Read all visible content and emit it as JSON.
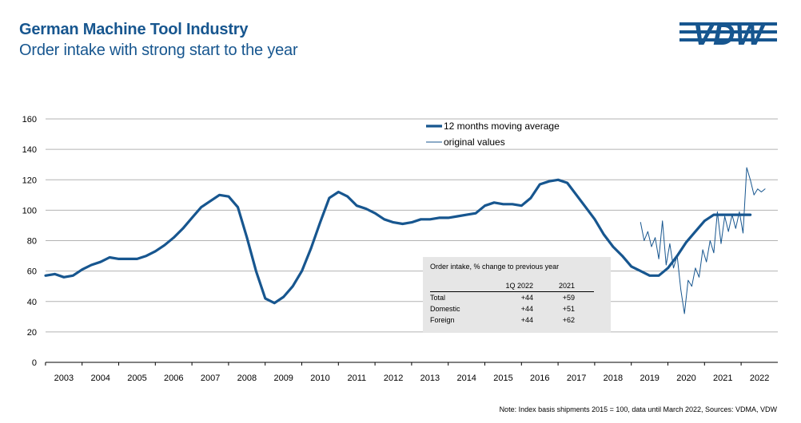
{
  "header": {
    "title": "German Machine Tool Industry",
    "subtitle": "Order intake with strong start to the year",
    "logo_text": "VDW"
  },
  "footnote": "Note: Index basis shipments 2015 = 100, data until March 2022, Sources: VDMA, VDW",
  "colors": {
    "accent": "#17568f",
    "grid": "#b3b3b3",
    "box": "#e6e6e6"
  },
  "inset_table": {
    "title": "Order intake, % change to previous year",
    "columns": [
      "1Q 2022",
      "2021"
    ],
    "rows": [
      {
        "label": "Total",
        "values": [
          "+44",
          "+59"
        ]
      },
      {
        "label": "Domestic",
        "values": [
          "+44",
          "+51"
        ]
      },
      {
        "label": "Foreign",
        "values": [
          "+44",
          "+62"
        ]
      }
    ]
  },
  "chart_data": {
    "type": "line",
    "title": "",
    "xlabel": "",
    "ylabel": "",
    "ylim": [
      0,
      160
    ],
    "yticks": [
      0,
      20,
      40,
      60,
      80,
      100,
      120,
      140,
      160
    ],
    "xlim": [
      2002.5,
      2022.5
    ],
    "xtick_labels": [
      "2003",
      "2004",
      "2005",
      "2006",
      "2007",
      "2008",
      "2009",
      "2010",
      "2011",
      "2012",
      "2013",
      "2014",
      "2015",
      "2016",
      "2017",
      "2018",
      "2019",
      "2020",
      "2021",
      "2022"
    ],
    "grid": true,
    "legend": "top-center",
    "series": [
      {
        "name": "12 months moving average",
        "style": "thick",
        "x": [
          2002.5,
          2002.75,
          2003.0,
          2003.25,
          2003.5,
          2003.75,
          2004.0,
          2004.25,
          2004.5,
          2004.75,
          2005.0,
          2005.25,
          2005.5,
          2005.75,
          2006.0,
          2006.25,
          2006.5,
          2006.75,
          2007.0,
          2007.25,
          2007.5,
          2007.75,
          2008.0,
          2008.25,
          2008.5,
          2008.75,
          2009.0,
          2009.25,
          2009.5,
          2009.75,
          2010.0,
          2010.25,
          2010.5,
          2010.75,
          2011.0,
          2011.25,
          2011.5,
          2011.75,
          2012.0,
          2012.25,
          2012.5,
          2012.75,
          2013.0,
          2013.25,
          2013.5,
          2013.75,
          2014.0,
          2014.25,
          2014.5,
          2014.75,
          2015.0,
          2015.25,
          2015.5,
          2015.75,
          2016.0,
          2016.25,
          2016.5,
          2016.75,
          2017.0,
          2017.25,
          2017.5,
          2017.75,
          2018.0,
          2018.25,
          2018.5,
          2018.75,
          2019.0,
          2019.25,
          2019.5,
          2019.75,
          2020.0,
          2020.25,
          2020.5,
          2020.75,
          2021.0,
          2021.25,
          2021.5,
          2021.75
        ],
        "values": [
          57,
          58,
          56,
          57,
          61,
          64,
          66,
          69,
          68,
          68,
          68,
          70,
          73,
          77,
          82,
          88,
          95,
          102,
          106,
          110,
          109,
          102,
          82,
          60,
          42,
          39,
          43,
          50,
          60,
          75,
          92,
          108,
          112,
          109,
          103,
          101,
          98,
          94,
          92,
          91,
          92,
          94,
          94,
          95,
          95,
          96,
          97,
          98,
          103,
          105,
          104,
          104,
          103,
          108,
          117,
          119,
          120,
          118,
          110,
          102,
          94,
          84,
          76,
          70,
          63,
          60,
          57,
          57,
          62,
          70,
          79,
          86,
          93,
          97,
          97,
          97,
          97,
          97
        ]
      },
      {
        "name": "original values",
        "style": "thin",
        "x": [
          2018.75,
          2018.85,
          2018.95,
          2019.05,
          2019.15,
          2019.25,
          2019.35,
          2019.45,
          2019.55,
          2019.65,
          2019.75,
          2019.85,
          2019.95,
          2020.05,
          2020.15,
          2020.25,
          2020.35,
          2020.45,
          2020.55,
          2020.65,
          2020.75,
          2020.85,
          2020.95,
          2021.05,
          2021.15,
          2021.25,
          2021.35,
          2021.45,
          2021.55,
          2021.65,
          2021.75,
          2021.85,
          2021.95,
          2022.05,
          2022.15
        ],
        "values": [
          92,
          80,
          86,
          76,
          82,
          68,
          93,
          64,
          78,
          62,
          70,
          48,
          32,
          54,
          50,
          62,
          56,
          74,
          66,
          80,
          72,
          99,
          78,
          96,
          86,
          97,
          88,
          99,
          85,
          128,
          120,
          110,
          114,
          112,
          114
        ]
      }
    ]
  }
}
